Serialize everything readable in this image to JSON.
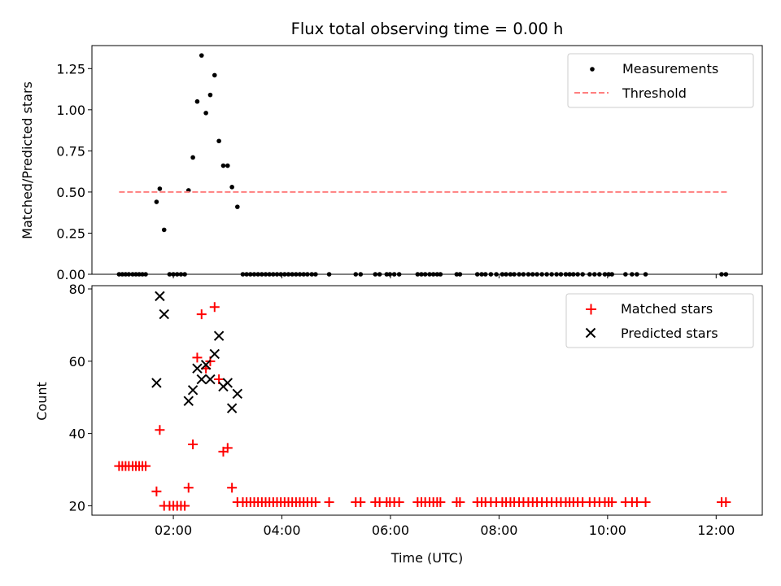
{
  "chart_data": [
    {
      "type": "scatter",
      "title": "Flux total observing time = 0.00 h",
      "xlabel": "",
      "ylabel": "Matched/Predicted stars",
      "xlim": [
        0.5,
        12.85
      ],
      "ylim": [
        0,
        1.39
      ],
      "x_ticks": [
        2,
        4,
        6,
        8,
        10,
        12
      ],
      "y_ticks": [
        0,
        0.25,
        0.5,
        0.75,
        1.0,
        1.25
      ],
      "y_tick_labels": [
        "0.00",
        "0.25",
        "0.50",
        "0.75",
        "1.00",
        "1.25"
      ],
      "legend_position": "top-right",
      "series": [
        {
          "name": "Measurements",
          "kind": "scatter",
          "color": "#000000",
          "points": [
            [
              1.0,
              0
            ],
            [
              1.06,
              0
            ],
            [
              1.12,
              0
            ],
            [
              1.18,
              0
            ],
            [
              1.25,
              0
            ],
            [
              1.31,
              0
            ],
            [
              1.37,
              0
            ],
            [
              1.43,
              0
            ],
            [
              1.49,
              0
            ],
            [
              1.69,
              0.44
            ],
            [
              1.75,
              0.52
            ],
            [
              1.83,
              0.27
            ],
            [
              1.93,
              0
            ],
            [
              2.0,
              0
            ],
            [
              2.07,
              0
            ],
            [
              2.14,
              0
            ],
            [
              2.21,
              0
            ],
            [
              2.28,
              0.51
            ],
            [
              2.36,
              0.71
            ],
            [
              2.44,
              1.05
            ],
            [
              2.52,
              1.33
            ],
            [
              2.6,
              0.98
            ],
            [
              2.68,
              1.09
            ],
            [
              2.76,
              1.21
            ],
            [
              2.84,
              0.81
            ],
            [
              2.92,
              0.66
            ],
            [
              3.0,
              0.66
            ],
            [
              3.08,
              0.53
            ],
            [
              3.18,
              0.41
            ],
            [
              3.28,
              0
            ],
            [
              3.35,
              0
            ],
            [
              3.42,
              0
            ],
            [
              3.49,
              0
            ],
            [
              3.56,
              0
            ],
            [
              3.63,
              0
            ],
            [
              3.7,
              0
            ],
            [
              3.77,
              0
            ],
            [
              3.84,
              0
            ],
            [
              3.91,
              0
            ],
            [
              3.98,
              0
            ],
            [
              4.05,
              0
            ],
            [
              4.12,
              0
            ],
            [
              4.19,
              0
            ],
            [
              4.26,
              0
            ],
            [
              4.33,
              0
            ],
            [
              4.4,
              0
            ],
            [
              4.47,
              0
            ],
            [
              4.55,
              0
            ],
            [
              4.62,
              0
            ],
            [
              4.87,
              0
            ],
            [
              5.36,
              0
            ],
            [
              5.45,
              0
            ],
            [
              5.72,
              0
            ],
            [
              5.8,
              0
            ],
            [
              5.93,
              0
            ],
            [
              5.99,
              0
            ],
            [
              6.07,
              0
            ],
            [
              6.16,
              0
            ],
            [
              6.5,
              0
            ],
            [
              6.57,
              0
            ],
            [
              6.64,
              0
            ],
            [
              6.72,
              0
            ],
            [
              6.79,
              0
            ],
            [
              6.86,
              0
            ],
            [
              6.92,
              0
            ],
            [
              7.22,
              0
            ],
            [
              7.28,
              0
            ],
            [
              7.6,
              0
            ],
            [
              7.68,
              0
            ],
            [
              7.75,
              0
            ],
            [
              7.85,
              0
            ],
            [
              7.95,
              0
            ],
            [
              8.06,
              0
            ],
            [
              8.13,
              0
            ],
            [
              8.21,
              0
            ],
            [
              8.28,
              0
            ],
            [
              8.37,
              0
            ],
            [
              8.45,
              0
            ],
            [
              8.54,
              0
            ],
            [
              8.62,
              0
            ],
            [
              8.7,
              0
            ],
            [
              8.79,
              0
            ],
            [
              8.88,
              0
            ],
            [
              8.97,
              0
            ],
            [
              9.06,
              0
            ],
            [
              9.14,
              0
            ],
            [
              9.23,
              0
            ],
            [
              9.3,
              0
            ],
            [
              9.37,
              0
            ],
            [
              9.45,
              0
            ],
            [
              9.54,
              0
            ],
            [
              9.67,
              0
            ],
            [
              9.76,
              0
            ],
            [
              9.85,
              0
            ],
            [
              9.95,
              0
            ],
            [
              10.02,
              0
            ],
            [
              10.08,
              0
            ],
            [
              10.33,
              0
            ],
            [
              10.45,
              0
            ],
            [
              10.54,
              0
            ],
            [
              10.7,
              0
            ],
            [
              12.1,
              0
            ],
            [
              12.18,
              0
            ]
          ]
        },
        {
          "name": "Threshold",
          "kind": "dashed-line",
          "color": "#ff7f7f",
          "x": [
            1.0,
            12.2
          ],
          "y": [
            0.5,
            0.5
          ]
        }
      ]
    },
    {
      "type": "scatter",
      "title": "",
      "xlabel": "Time (UTC)",
      "ylabel": "Count",
      "xlim": [
        0.5,
        12.85
      ],
      "ylim": [
        17.4,
        80.9
      ],
      "x_ticks": [
        2,
        4,
        6,
        8,
        10,
        12
      ],
      "x_tick_labels": [
        "02:00",
        "04:00",
        "06:00",
        "08:00",
        "10:00",
        "12:00"
      ],
      "y_ticks": [
        20,
        40,
        60,
        80
      ],
      "y_tick_labels": [
        "20",
        "40",
        "60",
        "80"
      ],
      "legend_position": "top-right",
      "series": [
        {
          "name": "Matched stars",
          "marker": "plus",
          "color": "#ff0000",
          "points": [
            [
              1.0,
              31
            ],
            [
              1.06,
              31
            ],
            [
              1.12,
              31
            ],
            [
              1.18,
              31
            ],
            [
              1.25,
              31
            ],
            [
              1.31,
              31
            ],
            [
              1.37,
              31
            ],
            [
              1.43,
              31
            ],
            [
              1.49,
              31
            ],
            [
              1.69,
              24
            ],
            [
              1.75,
              41
            ],
            [
              1.83,
              20
            ],
            [
              1.93,
              20
            ],
            [
              2.0,
              20
            ],
            [
              2.07,
              20
            ],
            [
              2.14,
              20
            ],
            [
              2.21,
              20
            ],
            [
              2.28,
              25
            ],
            [
              2.36,
              37
            ],
            [
              2.44,
              61
            ],
            [
              2.52,
              73
            ],
            [
              2.6,
              58
            ],
            [
              2.68,
              60
            ],
            [
              2.76,
              75
            ],
            [
              2.84,
              55
            ],
            [
              2.92,
              35
            ],
            [
              3.0,
              36
            ],
            [
              3.08,
              25
            ],
            [
              3.18,
              21
            ],
            [
              3.28,
              21
            ],
            [
              3.35,
              21
            ],
            [
              3.42,
              21
            ],
            [
              3.49,
              21
            ],
            [
              3.56,
              21
            ],
            [
              3.63,
              21
            ],
            [
              3.7,
              21
            ],
            [
              3.77,
              21
            ],
            [
              3.84,
              21
            ],
            [
              3.91,
              21
            ],
            [
              3.98,
              21
            ],
            [
              4.05,
              21
            ],
            [
              4.12,
              21
            ],
            [
              4.19,
              21
            ],
            [
              4.26,
              21
            ],
            [
              4.33,
              21
            ],
            [
              4.4,
              21
            ],
            [
              4.47,
              21
            ],
            [
              4.55,
              21
            ],
            [
              4.62,
              21
            ],
            [
              4.87,
              21
            ],
            [
              5.36,
              21
            ],
            [
              5.45,
              21
            ],
            [
              5.72,
              21
            ],
            [
              5.8,
              21
            ],
            [
              5.93,
              21
            ],
            [
              5.99,
              21
            ],
            [
              6.07,
              21
            ],
            [
              6.16,
              21
            ],
            [
              6.5,
              21
            ],
            [
              6.57,
              21
            ],
            [
              6.64,
              21
            ],
            [
              6.72,
              21
            ],
            [
              6.79,
              21
            ],
            [
              6.86,
              21
            ],
            [
              6.92,
              21
            ],
            [
              7.22,
              21
            ],
            [
              7.28,
              21
            ],
            [
              7.6,
              21
            ],
            [
              7.68,
              21
            ],
            [
              7.75,
              21
            ],
            [
              7.85,
              21
            ],
            [
              7.95,
              21
            ],
            [
              8.06,
              21
            ],
            [
              8.13,
              21
            ],
            [
              8.21,
              21
            ],
            [
              8.28,
              21
            ],
            [
              8.37,
              21
            ],
            [
              8.45,
              21
            ],
            [
              8.54,
              21
            ],
            [
              8.62,
              21
            ],
            [
              8.7,
              21
            ],
            [
              8.79,
              21
            ],
            [
              8.88,
              21
            ],
            [
              8.97,
              21
            ],
            [
              9.06,
              21
            ],
            [
              9.14,
              21
            ],
            [
              9.23,
              21
            ],
            [
              9.3,
              21
            ],
            [
              9.37,
              21
            ],
            [
              9.45,
              21
            ],
            [
              9.54,
              21
            ],
            [
              9.67,
              21
            ],
            [
              9.76,
              21
            ],
            [
              9.85,
              21
            ],
            [
              9.95,
              21
            ],
            [
              10.02,
              21
            ],
            [
              10.08,
              21
            ],
            [
              10.33,
              21
            ],
            [
              10.45,
              21
            ],
            [
              10.54,
              21
            ],
            [
              10.7,
              21
            ],
            [
              12.1,
              21
            ],
            [
              12.18,
              21
            ]
          ]
        },
        {
          "name": "Predicted stars",
          "marker": "x",
          "color": "#000000",
          "points": [
            [
              1.69,
              54
            ],
            [
              1.75,
              78
            ],
            [
              1.83,
              73
            ],
            [
              2.28,
              49
            ],
            [
              2.36,
              52
            ],
            [
              2.44,
              58
            ],
            [
              2.52,
              55
            ],
            [
              2.6,
              59
            ],
            [
              2.68,
              55
            ],
            [
              2.76,
              62
            ],
            [
              2.84,
              67
            ],
            [
              2.92,
              53
            ],
            [
              3.0,
              54
            ],
            [
              3.08,
              47
            ],
            [
              3.18,
              51
            ]
          ]
        }
      ]
    }
  ]
}
